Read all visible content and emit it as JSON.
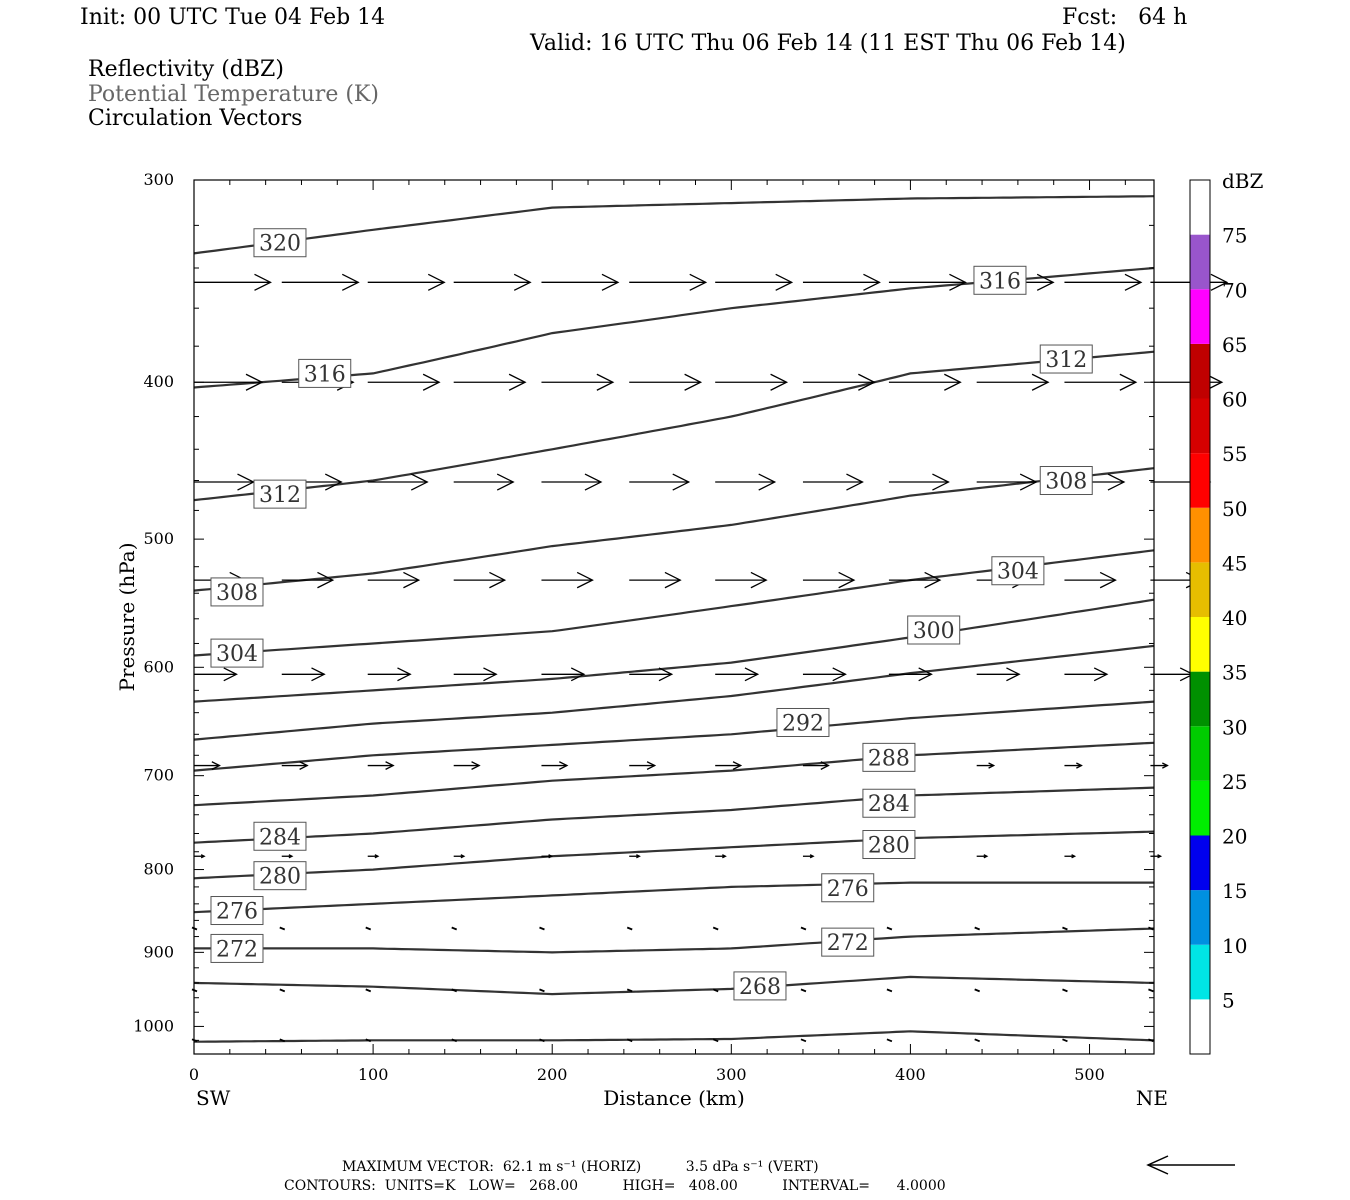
{
  "header": {
    "init": "Init: 00 UTC Tue 04 Feb 14",
    "fcst": "Fcst:   64 h",
    "valid": "Valid: 16 UTC Thu 06 Feb 14 (11 EST Thu 06 Feb 14)",
    "fields": [
      "Reflectivity (dBZ)",
      "Potential Temperature (K)",
      "Circulation Vectors"
    ]
  },
  "chart_data": {
    "type": "line",
    "title": "",
    "xlabel": "Distance (km)",
    "ylabel": "Pressure (hPa)",
    "xlim": [
      0,
      536
    ],
    "ylim": [
      1040,
      300
    ],
    "y_scale": "log",
    "x_ticks": [
      0,
      100,
      200,
      300,
      400,
      500
    ],
    "y_ticks": [
      300,
      400,
      500,
      600,
      700,
      800,
      900,
      1000
    ],
    "x_end_labels": {
      "left": "SW",
      "right": "NE"
    },
    "grid": false,
    "contour_units": "K",
    "contour_labels": [
      {
        "text": "320",
        "x": 48,
        "p": 328
      },
      {
        "text": "316",
        "x": 73,
        "p": 395
      },
      {
        "text": "316",
        "x": 450,
        "p": 346
      },
      {
        "text": "312",
        "x": 48,
        "p": 469
      },
      {
        "text": "312",
        "x": 487,
        "p": 387
      },
      {
        "text": "308",
        "x": 24,
        "p": 539
      },
      {
        "text": "308",
        "x": 487,
        "p": 460
      },
      {
        "text": "304",
        "x": 24,
        "p": 588
      },
      {
        "text": "304",
        "x": 460,
        "p": 523
      },
      {
        "text": "300",
        "x": 413,
        "p": 569
      },
      {
        "text": "292",
        "x": 340,
        "p": 649
      },
      {
        "text": "288",
        "x": 388,
        "p": 682
      },
      {
        "text": "284",
        "x": 48,
        "p": 763
      },
      {
        "text": "284",
        "x": 388,
        "p": 728
      },
      {
        "text": "280",
        "x": 48,
        "p": 807
      },
      {
        "text": "280",
        "x": 388,
        "p": 772
      },
      {
        "text": "276",
        "x": 24,
        "p": 848
      },
      {
        "text": "276",
        "x": 365,
        "p": 821
      },
      {
        "text": "272",
        "x": 24,
        "p": 895
      },
      {
        "text": "272",
        "x": 365,
        "p": 887
      },
      {
        "text": "268",
        "x": 316,
        "p": 944
      }
    ],
    "series": [
      {
        "x": [
          0,
          100,
          200,
          300,
          400,
          536
        ],
        "p": [
          1022,
          1020,
          1020,
          1018,
          1007,
          1020
        ]
      },
      {
        "x": [
          0,
          100,
          200,
          300,
          400,
          536
        ],
        "p": [
          940,
          945,
          955,
          948,
          932,
          940
        ]
      },
      {
        "x": [
          0,
          100,
          200,
          300,
          400,
          536
        ],
        "p": [
          895,
          895,
          900,
          895,
          880,
          870
        ]
      },
      {
        "x": [
          0,
          100,
          200,
          300,
          400,
          536
        ],
        "p": [
          850,
          840,
          830,
          820,
          815,
          815
        ]
      },
      {
        "x": [
          0,
          100,
          200,
          300,
          400,
          536
        ],
        "p": [
          810,
          800,
          785,
          775,
          765,
          758
        ]
      },
      {
        "x": [
          0,
          100,
          200,
          300,
          400,
          536
        ],
        "p": [
          770,
          760,
          745,
          735,
          720,
          712
        ]
      },
      {
        "x": [
          0,
          100,
          200,
          300,
          400,
          536
        ],
        "p": [
          730,
          720,
          705,
          695,
          680,
          668
        ]
      },
      {
        "x": [
          0,
          100,
          200,
          300,
          400,
          536
        ],
        "p": [
          695,
          680,
          670,
          660,
          645,
          630
        ]
      },
      {
        "x": [
          0,
          100,
          200,
          300,
          400,
          536
        ],
        "p": [
          665,
          650,
          640,
          625,
          605,
          582
        ]
      },
      {
        "x": [
          0,
          100,
          200,
          300,
          400,
          536
        ],
        "p": [
          630,
          620,
          610,
          596,
          575,
          545
        ]
      },
      {
        "x": [
          0,
          100,
          200,
          300,
          400,
          536
        ],
        "p": [
          590,
          580,
          570,
          550,
          530,
          508
        ]
      },
      {
        "x": [
          0,
          100,
          200,
          300,
          400,
          536
        ],
        "p": [
          538,
          525,
          505,
          490,
          470,
          452
        ]
      },
      {
        "x": [
          0,
          100,
          200,
          300,
          400,
          536
        ],
        "p": [
          473,
          460,
          440,
          420,
          395,
          383
        ]
      },
      {
        "x": [
          0,
          100,
          200,
          300,
          400,
          536
        ],
        "p": [
          403,
          395,
          373,
          360,
          350,
          340
        ]
      },
      {
        "x": [
          0,
          100,
          200,
          300,
          400,
          536
        ],
        "p": [
          333,
          322,
          312,
          310,
          308,
          307
        ]
      }
    ],
    "vectors": [
      {
        "p": 347,
        "items": [
          [
            0,
            45
          ],
          [
            49,
            45
          ],
          [
            97,
            45
          ],
          [
            145,
            45
          ],
          [
            194,
            45
          ],
          [
            243,
            45
          ],
          [
            291,
            45
          ],
          [
            340,
            45
          ],
          [
            388,
            45
          ],
          [
            437,
            45
          ],
          [
            486,
            45
          ],
          [
            534,
            45
          ]
        ]
      },
      {
        "p": 400,
        "items": [
          [
            0,
            40
          ],
          [
            49,
            42
          ],
          [
            97,
            42
          ],
          [
            145,
            42
          ],
          [
            194,
            42
          ],
          [
            243,
            42
          ],
          [
            291,
            42
          ],
          [
            340,
            42
          ],
          [
            388,
            42
          ],
          [
            437,
            42
          ],
          [
            486,
            42
          ],
          [
            534,
            42
          ]
        ]
      },
      {
        "p": 461,
        "items": [
          [
            0,
            35
          ],
          [
            49,
            35
          ],
          [
            97,
            35
          ],
          [
            145,
            35
          ],
          [
            194,
            35
          ],
          [
            243,
            35
          ],
          [
            291,
            35
          ],
          [
            340,
            35
          ],
          [
            388,
            35
          ],
          [
            437,
            35
          ],
          [
            486,
            35
          ],
          [
            534,
            35
          ]
        ]
      },
      {
        "p": 530,
        "items": [
          [
            0,
            30
          ],
          [
            49,
            30
          ],
          [
            97,
            30
          ],
          [
            145,
            30
          ],
          [
            194,
            30
          ],
          [
            243,
            30
          ],
          [
            291,
            30
          ],
          [
            340,
            30
          ],
          [
            388,
            30
          ],
          [
            437,
            30
          ],
          [
            486,
            30
          ],
          [
            534,
            30
          ]
        ]
      },
      {
        "p": 606,
        "items": [
          [
            0,
            25
          ],
          [
            49,
            25
          ],
          [
            97,
            25
          ],
          [
            145,
            25
          ],
          [
            194,
            25
          ],
          [
            243,
            25
          ],
          [
            291,
            25
          ],
          [
            340,
            25
          ],
          [
            388,
            25
          ],
          [
            437,
            25
          ],
          [
            486,
            25
          ],
          [
            534,
            25
          ]
        ]
      },
      {
        "p": 690,
        "items": [
          [
            0,
            15
          ],
          [
            49,
            15
          ],
          [
            97,
            15
          ],
          [
            145,
            15
          ],
          [
            194,
            15
          ],
          [
            243,
            15
          ],
          [
            291,
            15
          ],
          [
            340,
            15
          ],
          [
            388,
            12
          ],
          [
            437,
            10
          ],
          [
            486,
            10
          ],
          [
            534,
            10
          ]
        ]
      },
      {
        "p": 785,
        "items": [
          [
            0,
            6
          ],
          [
            49,
            6
          ],
          [
            97,
            6
          ],
          [
            145,
            6
          ],
          [
            194,
            6
          ],
          [
            243,
            6
          ],
          [
            291,
            6
          ],
          [
            340,
            6
          ],
          [
            388,
            6
          ],
          [
            437,
            6
          ],
          [
            486,
            6
          ],
          [
            534,
            6
          ]
        ]
      },
      {
        "p": 870,
        "items": [
          [
            0,
            3
          ],
          [
            49,
            3
          ],
          [
            97,
            3
          ],
          [
            145,
            3
          ],
          [
            194,
            3
          ],
          [
            243,
            3
          ],
          [
            291,
            3
          ],
          [
            340,
            3
          ],
          [
            388,
            3
          ],
          [
            437,
            3
          ],
          [
            486,
            3
          ],
          [
            534,
            3
          ]
        ]
      },
      {
        "p": 950,
        "items": [
          [
            0,
            3
          ],
          [
            49,
            3
          ],
          [
            97,
            3
          ],
          [
            145,
            3
          ],
          [
            194,
            3
          ],
          [
            243,
            3
          ],
          [
            291,
            3
          ],
          [
            340,
            3
          ],
          [
            388,
            3
          ],
          [
            437,
            3
          ],
          [
            486,
            3
          ],
          [
            534,
            3
          ]
        ]
      },
      {
        "p": 1020,
        "items": [
          [
            0,
            2
          ],
          [
            49,
            2
          ],
          [
            97,
            2
          ],
          [
            145,
            2
          ],
          [
            194,
            2
          ],
          [
            243,
            2
          ],
          [
            291,
            2
          ],
          [
            340,
            2
          ],
          [
            388,
            2
          ],
          [
            437,
            2
          ],
          [
            486,
            2
          ],
          [
            534,
            2
          ]
        ]
      }
    ],
    "colorbar": {
      "label": "dBZ",
      "levels": [
        "5",
        "10",
        "15",
        "20",
        "25",
        "30",
        "35",
        "40",
        "45",
        "50",
        "55",
        "60",
        "65",
        "70",
        "75"
      ],
      "colors": [
        "#ffffff",
        "#00e5e5",
        "#0090e0",
        "#0000ee",
        "#00ee00",
        "#00cc00",
        "#009000",
        "#ffff00",
        "#e6be00",
        "#ff9000",
        "#ff0000",
        "#d60000",
        "#c00000",
        "#ff00ff",
        "#9955cc",
        "#ffffff"
      ]
    }
  },
  "footer": {
    "max_vector": "MAXIMUM VECTOR:  62.1 m s⁻¹ (HORIZ)          3.5 dPa s⁻¹ (VERT)",
    "contours": "CONTOURS:  UNITS=K   LOW=   268.00          HIGH=   408.00          INTERVAL=      4.0000"
  }
}
